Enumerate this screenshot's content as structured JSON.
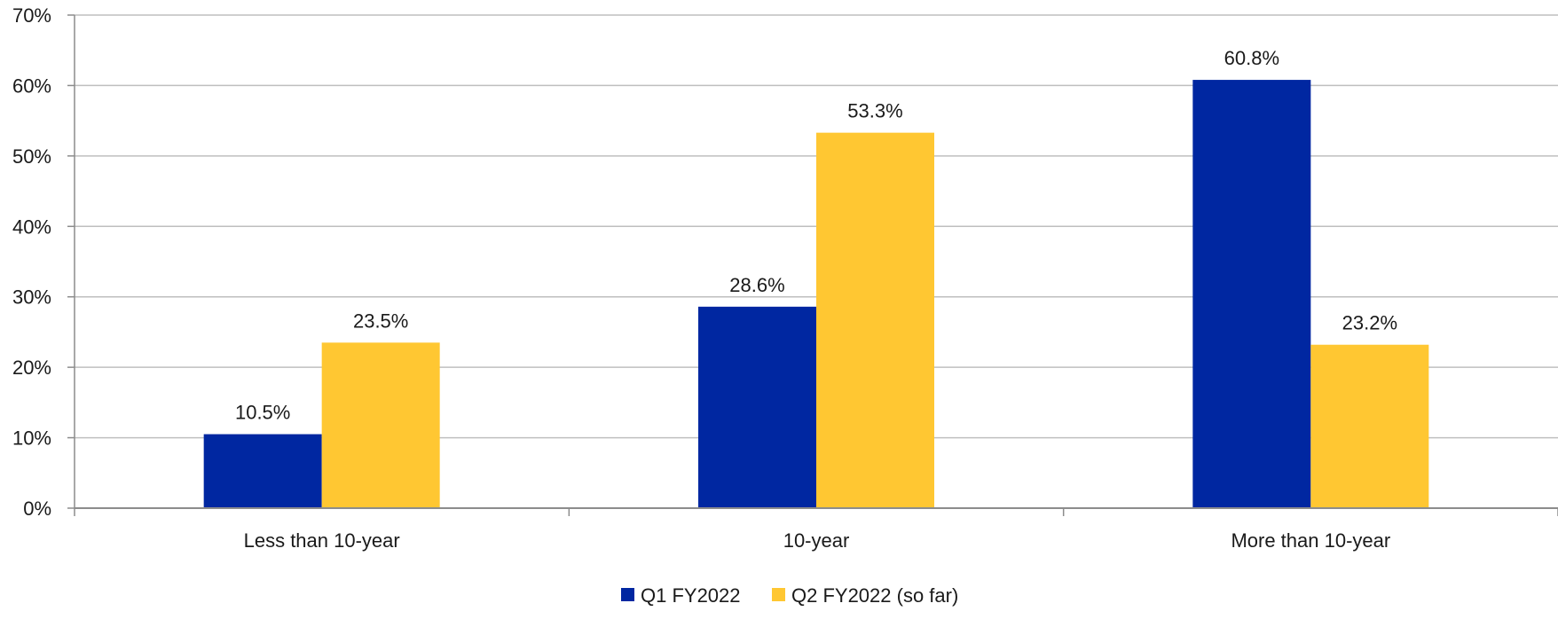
{
  "chart_data": {
    "type": "bar",
    "categories": [
      "Less than 10-year",
      "10-year",
      "More than 10-year"
    ],
    "series": [
      {
        "name": "Q1 FY2022",
        "color": "#0027A1",
        "values": [
          10.5,
          28.6,
          60.8
        ],
        "labels": [
          "10.5%",
          "28.6%",
          "60.8%"
        ]
      },
      {
        "name": "Q2 FY2022 (so far)",
        "color": "#FFC732",
        "values": [
          23.5,
          53.3,
          23.2
        ],
        "labels": [
          "23.5%",
          "53.3%",
          "23.2%"
        ]
      }
    ],
    "y_ticks": [
      {
        "value": 0,
        "label": "0%"
      },
      {
        "value": 10,
        "label": "10%"
      },
      {
        "value": 20,
        "label": "20%"
      },
      {
        "value": 30,
        "label": "30%"
      },
      {
        "value": 40,
        "label": "40%"
      },
      {
        "value": 50,
        "label": "50%"
      },
      {
        "value": 60,
        "label": "60%"
      },
      {
        "value": 70,
        "label": "70%"
      }
    ],
    "ylim": [
      0,
      70
    ],
    "title": "",
    "xlabel": "",
    "ylabel": "",
    "grid": true,
    "legend_position": "bottom-center"
  }
}
